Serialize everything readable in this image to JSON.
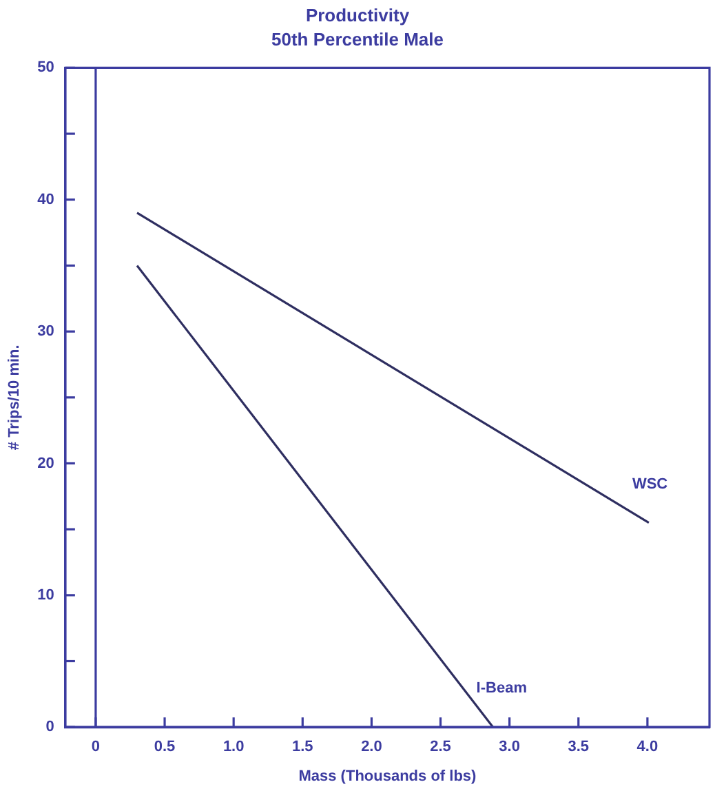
{
  "chart_data": {
    "type": "line",
    "title": "Productivity",
    "subtitle": "50th Percentile Male",
    "xlabel": "Mass (Thousands of lbs)",
    "ylabel": "# Trips/10 min.",
    "xlim": [
      -0.22,
      4.45
    ],
    "ylim": [
      0,
      50
    ],
    "xticks": [
      0,
      {
        "value": 0.5,
        "label": "0.5"
      },
      {
        "value": 1,
        "label": "1.0"
      },
      {
        "value": 1.5,
        "label": "1.5"
      },
      {
        "value": 2,
        "label": "2.0"
      },
      {
        "value": 2.5,
        "label": "2.5"
      },
      {
        "value": 3,
        "label": "3.0"
      },
      {
        "value": 3.5,
        "label": "3.5"
      },
      {
        "value": 4,
        "label": "4.0"
      }
    ],
    "yticks": [
      0,
      {
        "value": 5,
        "label": null
      },
      10,
      {
        "value": 15,
        "label": null
      },
      20,
      {
        "value": 25,
        "label": null
      },
      30,
      {
        "value": 35,
        "label": null
      },
      40,
      {
        "value": 45,
        "label": null
      },
      50
    ],
    "grid": false,
    "legend": false,
    "marker": "none",
    "line_style": "solid",
    "ref_lines": [
      {
        "axis": "x",
        "value": 0,
        "color": "#3c3ca0"
      }
    ],
    "series": [
      {
        "name": "WSC",
        "color": "#2e2e60",
        "x": [
          0.3,
          4.01
        ],
        "values": [
          39,
          15.5
        ]
      },
      {
        "name": "I-Beam",
        "color": "#2e2e60",
        "x": [
          0.3,
          2.88
        ],
        "values": [
          35,
          0
        ]
      }
    ]
  }
}
